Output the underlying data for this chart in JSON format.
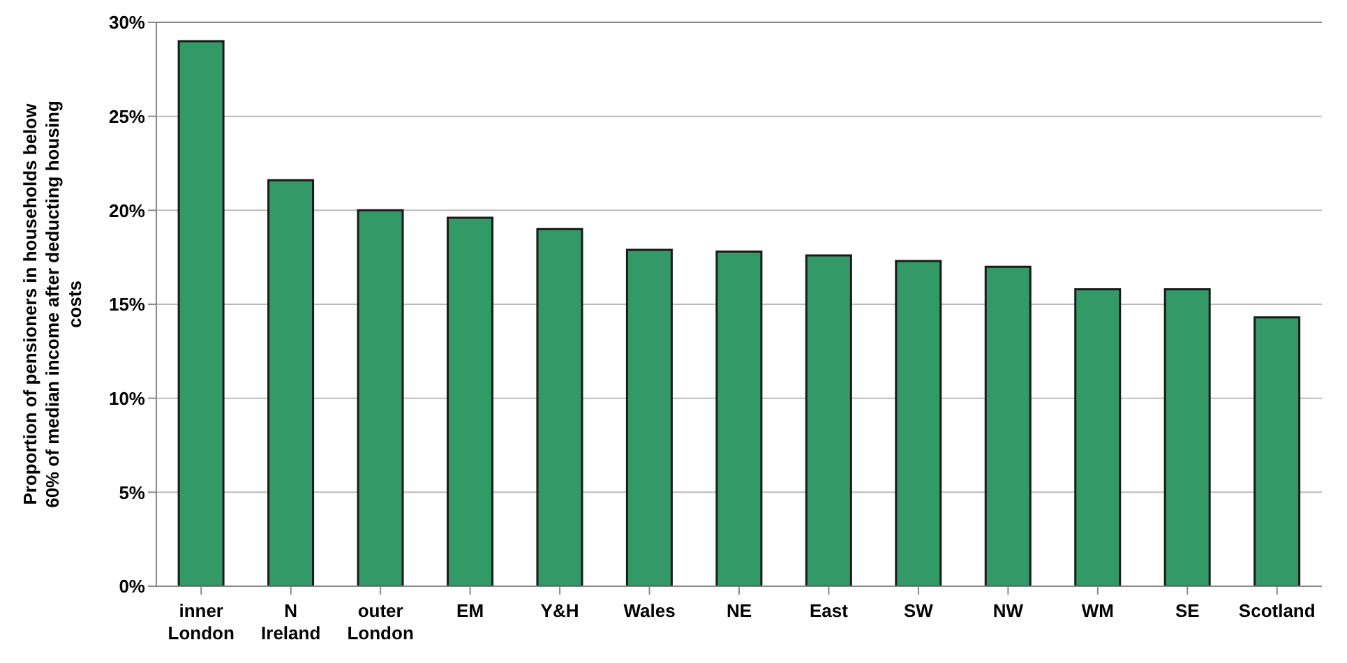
{
  "chart_data": {
    "type": "bar",
    "ylabel": "Proportion of pensioners in households below 60% of median income after deducting housing costs",
    "categories": [
      "inner London",
      "N Ireland",
      "outer London",
      "EM",
      "Y&H",
      "Wales",
      "NE",
      "East",
      "SW",
      "NW",
      "WM",
      "SE",
      "Scotland"
    ],
    "values": [
      29.0,
      21.6,
      20.0,
      19.6,
      19.0,
      17.9,
      17.8,
      17.6,
      17.3,
      17.0,
      15.8,
      15.8,
      14.3
    ],
    "color": "#339966",
    "ylim": [
      0,
      30
    ],
    "yticks": [
      {
        "value": 0,
        "label": "0%"
      },
      {
        "value": 5,
        "label": "5%"
      },
      {
        "value": 10,
        "label": "10%"
      },
      {
        "value": 15,
        "label": "15%"
      },
      {
        "value": 20,
        "label": "20%"
      },
      {
        "value": 25,
        "label": "25%"
      },
      {
        "value": 30,
        "label": "30%"
      }
    ],
    "grid": "y"
  }
}
